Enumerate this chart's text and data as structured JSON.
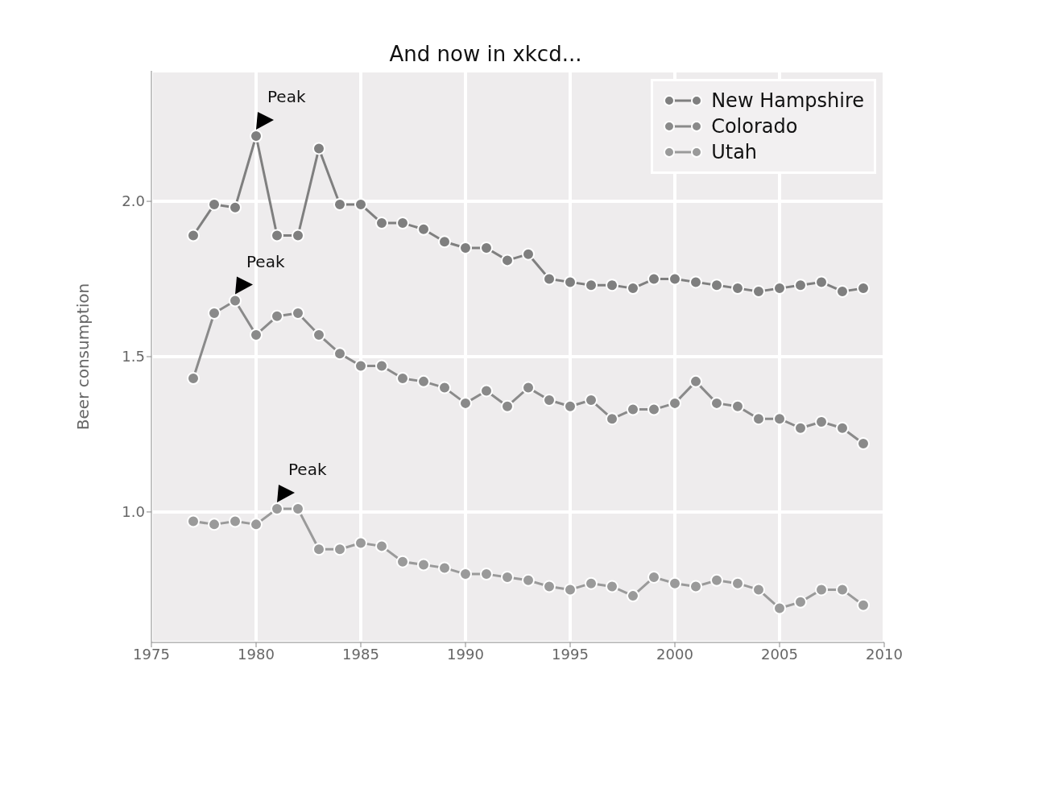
{
  "chart_data": {
    "type": "line",
    "title": "And now in xkcd...",
    "ylabel": "Beer consumption",
    "x": [
      1977,
      1978,
      1979,
      1980,
      1981,
      1982,
      1983,
      1984,
      1985,
      1986,
      1987,
      1988,
      1989,
      1990,
      1991,
      1992,
      1993,
      1994,
      1995,
      1996,
      1997,
      1998,
      1999,
      2000,
      2001,
      2002,
      2003,
      2004,
      2005,
      2006,
      2007,
      2008,
      2009
    ],
    "series": [
      {
        "name": "New Hampshire",
        "color": "#7f7f7f",
        "values": [
          1.89,
          1.99,
          1.98,
          2.21,
          1.89,
          1.89,
          2.17,
          1.99,
          1.99,
          1.93,
          1.93,
          1.91,
          1.87,
          1.85,
          1.85,
          1.81,
          1.83,
          1.75,
          1.74,
          1.73,
          1.73,
          1.72,
          1.75,
          1.75,
          1.74,
          1.73,
          1.72,
          1.71,
          1.72,
          1.73,
          1.74,
          1.71,
          1.72
        ]
      },
      {
        "name": "Colorado",
        "color": "#8a8a8a",
        "values": [
          1.43,
          1.64,
          1.68,
          1.57,
          1.63,
          1.64,
          1.57,
          1.51,
          1.47,
          1.47,
          1.43,
          1.42,
          1.4,
          1.35,
          1.39,
          1.34,
          1.4,
          1.36,
          1.34,
          1.36,
          1.3,
          1.33,
          1.33,
          1.35,
          1.42,
          1.35,
          1.34,
          1.3,
          1.3,
          1.27,
          1.29,
          1.27,
          1.22
        ]
      },
      {
        "name": "Utah",
        "color": "#9a9a9a",
        "values": [
          0.97,
          0.96,
          0.97,
          0.96,
          1.01,
          1.01,
          0.88,
          0.88,
          0.9,
          0.89,
          0.84,
          0.83,
          0.82,
          0.8,
          0.8,
          0.79,
          0.78,
          0.76,
          0.75,
          0.77,
          0.76,
          0.73,
          0.79,
          0.77,
          0.76,
          0.78,
          0.77,
          0.75,
          0.69,
          0.71,
          0.75,
          0.75,
          0.7
        ]
      }
    ],
    "annotations": [
      {
        "text": "Peak",
        "x": 1980,
        "y": 2.21
      },
      {
        "text": "Peak",
        "x": 1979,
        "y": 1.68
      },
      {
        "text": "Peak",
        "x": 1981,
        "y": 1.01
      }
    ],
    "xlim": [
      1975,
      2010
    ],
    "xticks": [
      1975,
      1980,
      1985,
      1990,
      1995,
      2000,
      2005,
      2010
    ],
    "ylim": [
      0.58,
      2.42
    ],
    "yticks": [
      {
        "value": 1.0,
        "label": "1.0"
      },
      {
        "value": 1.5,
        "label": "1.5"
      },
      {
        "value": 2.0,
        "label": "2.0"
      }
    ],
    "grid": true,
    "legend": "top right",
    "marker": "circle",
    "line_style": "solid"
  }
}
